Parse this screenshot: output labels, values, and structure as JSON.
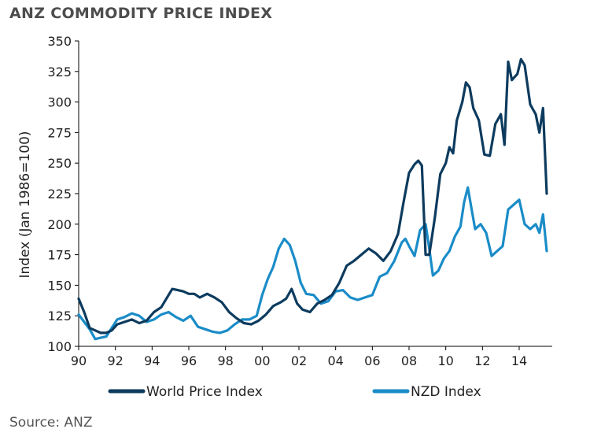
{
  "title": "ANZ COMMODITY PRICE INDEX",
  "source": "Source: ANZ",
  "chart_data": {
    "type": "line",
    "title": "ANZ COMMODITY PRICE INDEX",
    "xlabel": "",
    "ylabel": "Index (Jan 1986=100)",
    "ylim": [
      100,
      350
    ],
    "xlim": [
      1990,
      2015.8
    ],
    "yticks": [
      100,
      125,
      150,
      175,
      200,
      225,
      250,
      275,
      300,
      325,
      350
    ],
    "xticks": [
      1990,
      1992,
      1994,
      1996,
      1998,
      2000,
      2002,
      2004,
      2006,
      2008,
      2010,
      2012,
      2014
    ],
    "xtick_labels": [
      "90",
      "92",
      "94",
      "96",
      "98",
      "00",
      "02",
      "04",
      "06",
      "08",
      "10",
      "12",
      "14"
    ],
    "legend_position": "bottom",
    "series": [
      {
        "name": "World Price Index",
        "color": "#0d3b5e",
        "x": [
          1990.0,
          1990.3,
          1990.6,
          1990.9,
          1991.2,
          1991.5,
          1991.8,
          1992.1,
          1992.5,
          1992.9,
          1993.3,
          1993.7,
          1994.1,
          1994.5,
          1994.9,
          1995.1,
          1995.4,
          1995.7,
          1996.0,
          1996.3,
          1996.6,
          1997.0,
          1997.4,
          1997.8,
          1998.2,
          1998.6,
          1999.0,
          1999.4,
          1999.8,
          2000.2,
          2000.6,
          2001.0,
          2001.3,
          2001.6,
          2001.9,
          2002.2,
          2002.6,
          2003.0,
          2003.4,
          2003.8,
          2004.2,
          2004.6,
          2005.0,
          2005.4,
          2005.8,
          2006.2,
          2006.6,
          2007.0,
          2007.4,
          2007.7,
          2008.0,
          2008.3,
          2008.5,
          2008.7,
          2008.9,
          2009.1,
          2009.4,
          2009.7,
          2010.0,
          2010.2,
          2010.4,
          2010.6,
          2010.9,
          2011.1,
          2011.3,
          2011.5,
          2011.8,
          2012.1,
          2012.4,
          2012.7,
          2013.0,
          2013.2,
          2013.4,
          2013.6,
          2013.9,
          2014.1,
          2014.3,
          2014.6,
          2014.9,
          2015.1,
          2015.3,
          2015.5
        ],
        "values": [
          139,
          128,
          115,
          113,
          111,
          111,
          113,
          118,
          120,
          122,
          119,
          121,
          128,
          132,
          142,
          147,
          146,
          145,
          143,
          143,
          140,
          143,
          140,
          136,
          128,
          123,
          119,
          118,
          121,
          126,
          133,
          136,
          139,
          147,
          135,
          130,
          128,
          135,
          138,
          142,
          152,
          166,
          170,
          175,
          180,
          176,
          170,
          178,
          192,
          218,
          242,
          249,
          252,
          248,
          175,
          175,
          205,
          241,
          250,
          263,
          258,
          285,
          300,
          316,
          312,
          295,
          285,
          257,
          256,
          282,
          290,
          265,
          333,
          318,
          323,
          335,
          330,
          298,
          290,
          275,
          295,
          225
        ]
      },
      {
        "name": "NZD Index",
        "color": "#1a8cc8",
        "x": [
          1990.0,
          1990.3,
          1990.6,
          1990.9,
          1991.2,
          1991.5,
          1991.8,
          1992.1,
          1992.5,
          1992.9,
          1993.3,
          1993.7,
          1994.1,
          1994.5,
          1994.9,
          1995.3,
          1995.7,
          1996.1,
          1996.5,
          1996.9,
          1997.3,
          1997.7,
          1998.1,
          1998.5,
          1998.9,
          1999.3,
          1999.7,
          2000.0,
          2000.3,
          2000.6,
          2000.9,
          2001.2,
          2001.5,
          2001.8,
          2002.1,
          2002.4,
          2002.8,
          2003.2,
          2003.6,
          2004.0,
          2004.4,
          2004.8,
          2005.2,
          2005.6,
          2006.0,
          2006.4,
          2006.8,
          2007.2,
          2007.6,
          2007.8,
          2008.0,
          2008.3,
          2008.6,
          2008.9,
          2009.1,
          2009.3,
          2009.6,
          2009.9,
          2010.2,
          2010.5,
          2010.8,
          2011.0,
          2011.2,
          2011.4,
          2011.6,
          2011.9,
          2012.2,
          2012.5,
          2012.8,
          2013.1,
          2013.4,
          2013.7,
          2014.0,
          2014.3,
          2014.6,
          2014.9,
          2015.1,
          2015.3,
          2015.5
        ],
        "values": [
          126,
          120,
          114,
          106,
          107,
          108,
          115,
          122,
          124,
          127,
          125,
          120,
          122,
          126,
          128,
          124,
          121,
          125,
          116,
          114,
          112,
          111,
          113,
          118,
          122,
          122,
          125,
          142,
          155,
          165,
          180,
          188,
          183,
          170,
          152,
          143,
          142,
          135,
          137,
          145,
          146,
          140,
          138,
          140,
          142,
          157,
          160,
          170,
          185,
          188,
          182,
          174,
          195,
          200,
          180,
          158,
          162,
          172,
          178,
          190,
          198,
          218,
          230,
          213,
          196,
          200,
          193,
          174,
          178,
          182,
          212,
          216,
          220,
          200,
          196,
          200,
          193,
          208,
          178
        ]
      }
    ]
  }
}
